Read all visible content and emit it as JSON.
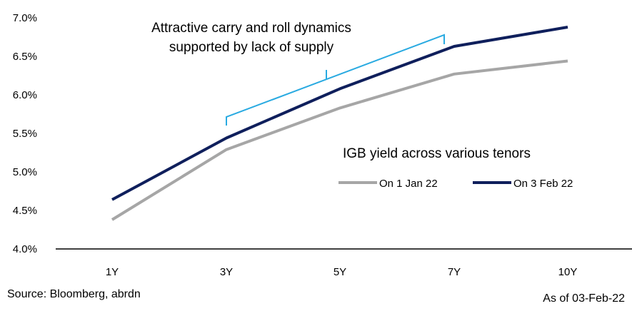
{
  "chart_data": {
    "type": "line",
    "title": "IGB yield across various tenors",
    "categories": [
      "1Y",
      "3Y",
      "5Y",
      "7Y",
      "10Y"
    ],
    "yticks": [
      "4.0%",
      "4.5%",
      "5.0%",
      "5.5%",
      "6.0%",
      "6.5%",
      "7.0%"
    ],
    "ylim": [
      4.0,
      7.0
    ],
    "series": [
      {
        "name": "On 1 Jan 22",
        "color": "#a6a6a6",
        "values": [
          4.38,
          5.29,
          5.83,
          6.27,
          6.44
        ]
      },
      {
        "name": "On 3 Feb 22",
        "color": "#0f1f5c",
        "values": [
          4.64,
          5.44,
          6.08,
          6.63,
          6.88
        ]
      }
    ],
    "annotation": {
      "lines": [
        "Attractive carry and roll dynamics",
        "supported by lack of supply"
      ],
      "color": "#29aae1"
    },
    "legend_position": "lower-right"
  },
  "footer": {
    "source": "Source: Bloomberg, abrdn",
    "as_of": "As of 03-Feb-22"
  }
}
